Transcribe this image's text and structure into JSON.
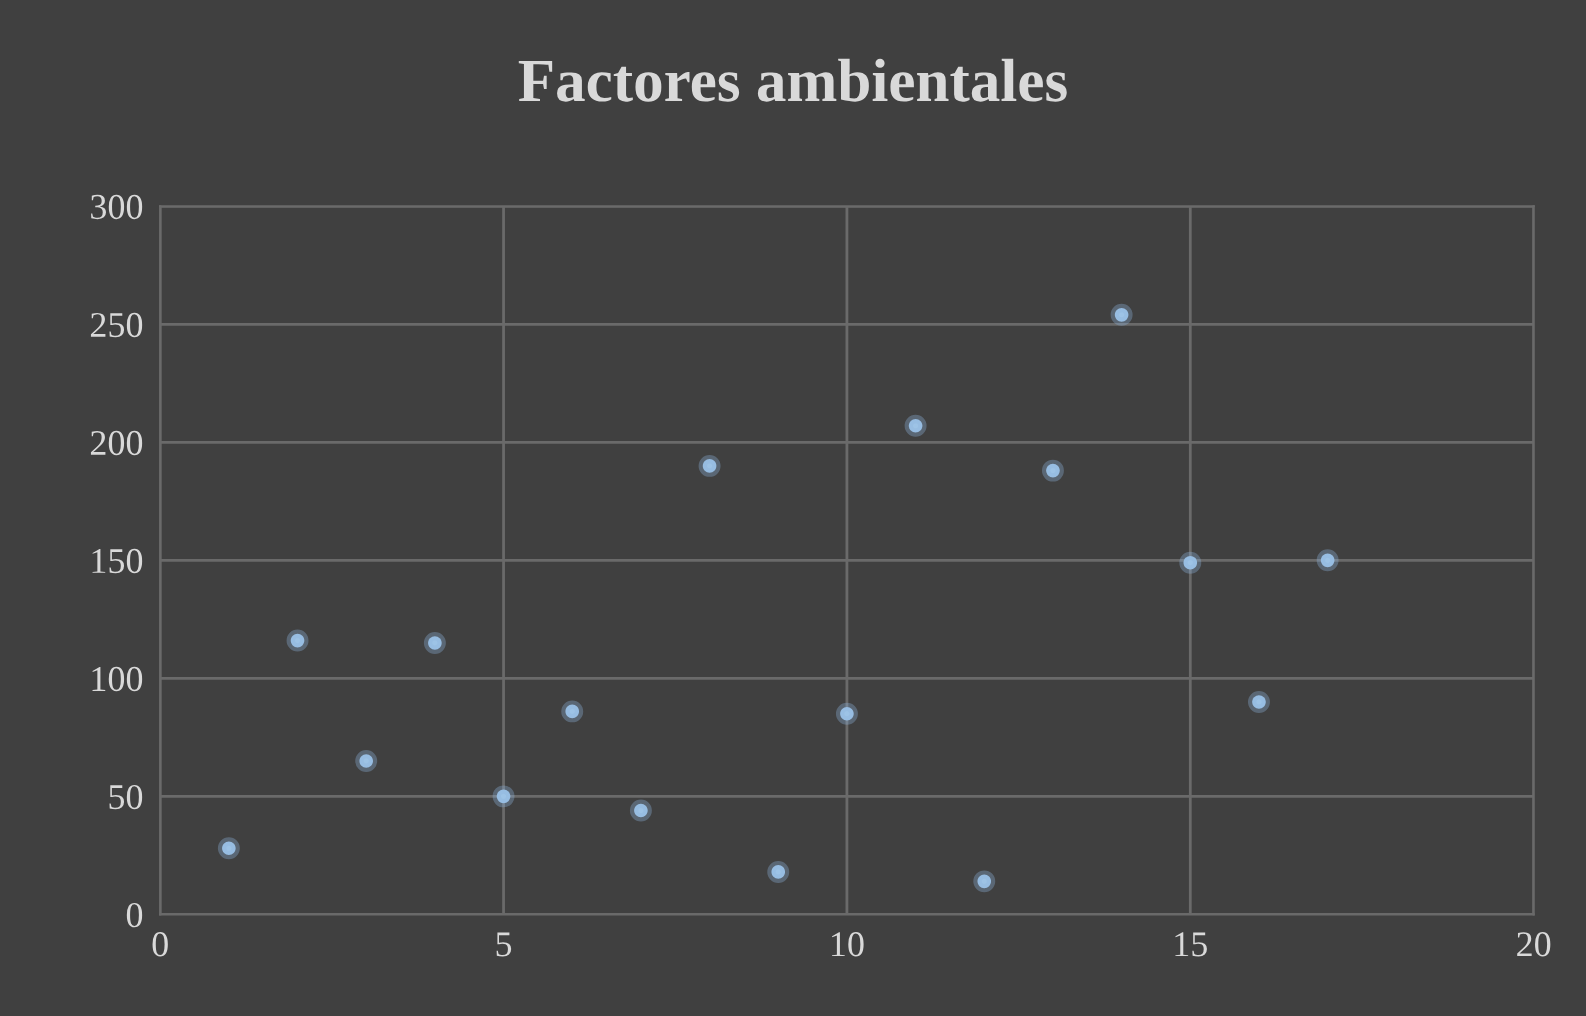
{
  "chart_data": {
    "type": "scatter",
    "title": "Factores ambientales",
    "x": [
      1,
      2,
      3,
      4,
      5,
      6,
      7,
      8,
      9,
      10,
      11,
      12,
      13,
      14,
      15,
      16,
      17
    ],
    "values": [
      28,
      116,
      65,
      115,
      50,
      86,
      44,
      190,
      18,
      85,
      207,
      14,
      188,
      254,
      149,
      90,
      150
    ],
    "color": "#9dc3e6",
    "marker": "circle",
    "xlim": [
      0,
      20
    ],
    "xticks": [
      0,
      5,
      10,
      15,
      20
    ],
    "ylim": [
      0,
      300
    ],
    "yticks": [
      0,
      50,
      100,
      150,
      200,
      250,
      300
    ],
    "grid": true,
    "legend": false
  }
}
